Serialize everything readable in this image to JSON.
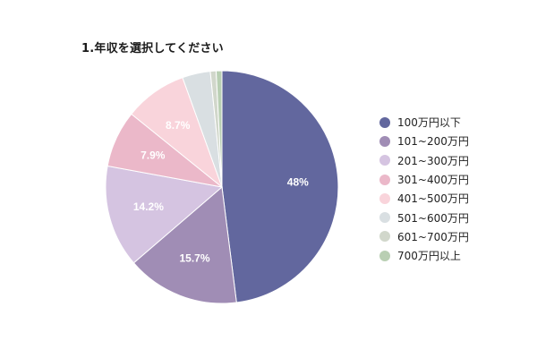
{
  "chart_data": {
    "type": "pie",
    "title": "1.年収を選択してください",
    "categories": [
      "100万円以下",
      "101~200万円",
      "201~300万円",
      "301~400万円",
      "401~500万円",
      "501~600万円",
      "601~700万円",
      "700万円以上"
    ],
    "values": [
      48,
      15.7,
      14.2,
      7.9,
      8.7,
      3.9,
      0.8,
      0.8
    ],
    "data_labels": [
      "48%",
      "15.7%",
      "14.2%",
      "7.9%",
      "8.7%",
      "",
      "",
      ""
    ],
    "colors": [
      "#62679e",
      "#a08db5",
      "#d5c4e1",
      "#ebb8c9",
      "#f9d4db",
      "#d9dfe2",
      "#d1d7cb",
      "#b9cfb3"
    ],
    "legend_position": "right",
    "start_angle": "12 o'clock",
    "direction": "clockwise"
  }
}
